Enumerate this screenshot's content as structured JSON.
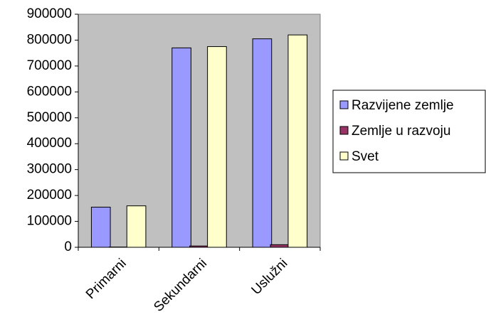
{
  "chart_data": {
    "type": "bar",
    "categories": [
      "Primarni",
      "Sekundarni",
      "Uslužni"
    ],
    "series": [
      {
        "name": "Razvijene zemlje",
        "color": "#9999ff",
        "values": [
          155000,
          770000,
          805000
        ]
      },
      {
        "name": "Zemlje u razvoju",
        "color": "#993366",
        "values": [
          1000,
          5000,
          10000
        ]
      },
      {
        "name": "Svet",
        "color": "#ffffcc",
        "values": [
          160000,
          775000,
          820000
        ]
      }
    ],
    "ylim": [
      0,
      900000
    ],
    "yticks": [
      0,
      100000,
      200000,
      300000,
      400000,
      500000,
      600000,
      700000,
      800000,
      900000
    ],
    "grid": false,
    "legend": "right"
  }
}
